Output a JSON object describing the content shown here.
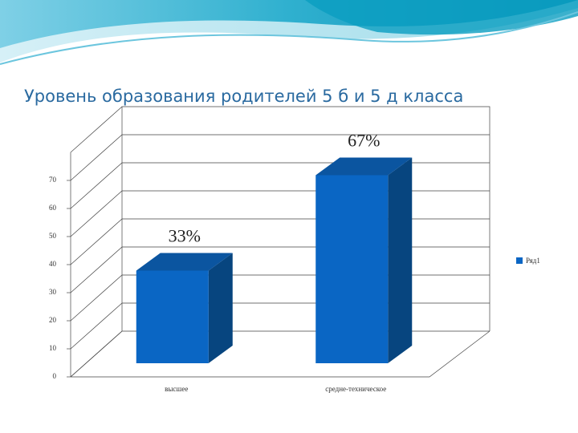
{
  "chart_data": {
    "type": "bar3d",
    "title": "Уровень образования родителей 5 б и 5 д класса",
    "categories": [
      "высшее",
      "средне-техническое"
    ],
    "series": [
      {
        "name": "Ряд1",
        "color": "#0a66c4",
        "values": [
          33,
          67
        ],
        "value_labels": [
          "33%",
          "67%"
        ]
      }
    ],
    "ylim": [
      0,
      80
    ],
    "yticks": [
      0,
      10,
      20,
      30,
      40,
      50,
      60,
      70
    ],
    "grid": true,
    "legend": "right"
  }
}
